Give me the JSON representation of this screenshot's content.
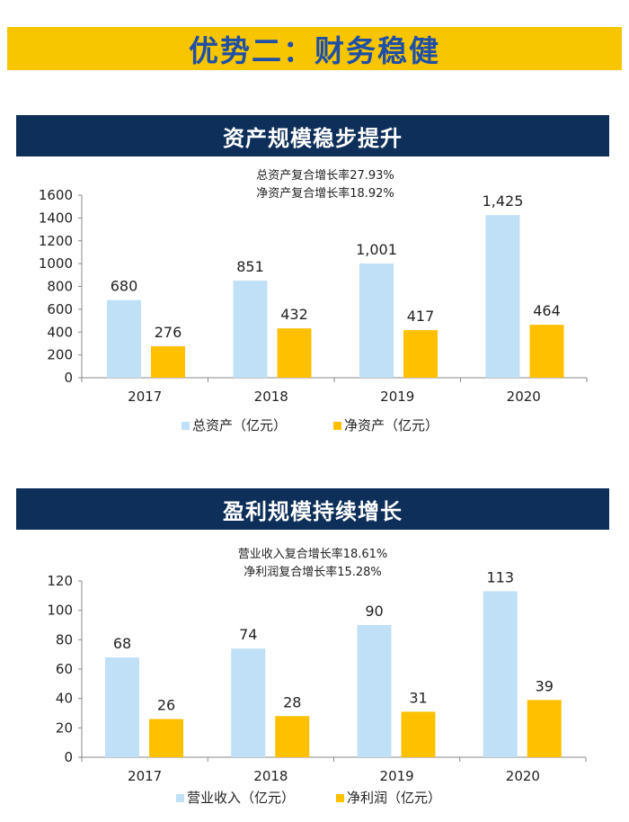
{
  "page_title": "优势二：财务稳健",
  "colors": {
    "series_a": "#bfe0f7",
    "series_b": "#ffc000",
    "title_bg": "#f7c600",
    "title_text": "#1f4fa6",
    "section_bg": "#0d2f5a"
  },
  "chart_data": [
    {
      "type": "bar",
      "section_title": "资产规模稳步提升",
      "annotations": [
        "总资产复合增长率27.93%",
        "净资产复合增长率18.92%"
      ],
      "categories": [
        "2017",
        "2018",
        "2019",
        "2020"
      ],
      "series": [
        {
          "name": "总资产（亿元）",
          "values": [
            680,
            851,
            1001,
            1425
          ],
          "labels": [
            "680",
            "851",
            "1,001",
            "1,425"
          ]
        },
        {
          "name": "净资产（亿元）",
          "values": [
            276,
            432,
            417,
            464
          ],
          "labels": [
            "276",
            "432",
            "417",
            "464"
          ]
        }
      ],
      "ylim": [
        0,
        1600
      ],
      "yticks": [
        0,
        200,
        400,
        600,
        800,
        1000,
        1200,
        1400,
        1600
      ],
      "legend_position": "bottom"
    },
    {
      "type": "bar",
      "section_title": "盈利规模持续增长",
      "annotations": [
        "营业收入复合增长率18.61%",
        "净利润复合增长率15.28%"
      ],
      "categories": [
        "2017",
        "2018",
        "2019",
        "2020"
      ],
      "series": [
        {
          "name": "营业收入（亿元）",
          "values": [
            68,
            74,
            90,
            113
          ],
          "labels": [
            "68",
            "74",
            "90",
            "113"
          ]
        },
        {
          "name": "净利润（亿元）",
          "values": [
            26,
            28,
            31,
            39
          ],
          "labels": [
            "26",
            "28",
            "31",
            "39"
          ]
        }
      ],
      "ylim": [
        0,
        120
      ],
      "yticks": [
        0,
        20,
        40,
        60,
        80,
        100,
        120
      ],
      "legend_position": "bottom"
    }
  ]
}
